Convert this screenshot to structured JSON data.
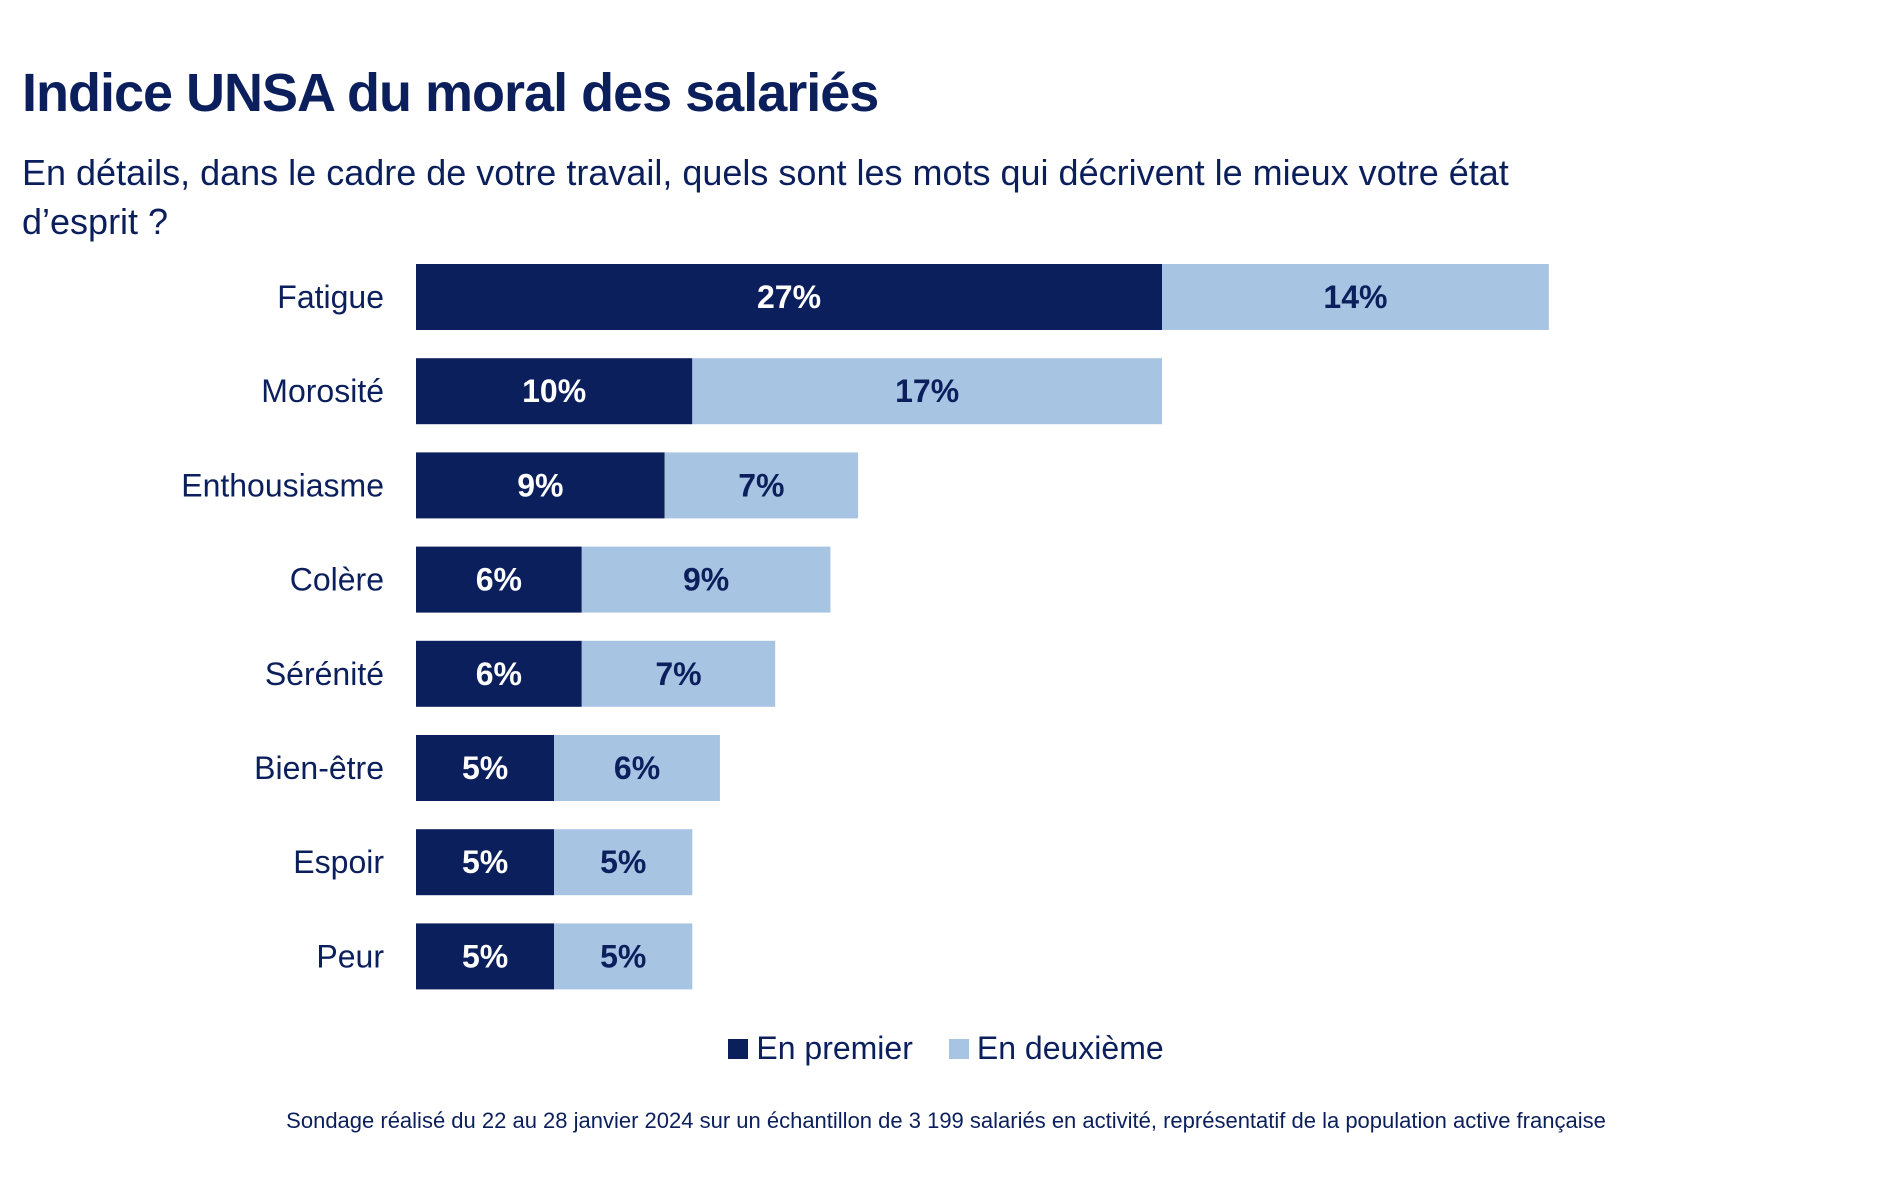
{
  "chart_data": {
    "type": "bar",
    "orientation": "horizontal",
    "stacked": true,
    "title": "Indice UNSA du moral des salariés",
    "subtitle": "En détails, dans le cadre de votre travail, quels sont les mots qui décrivent le mieux votre état d’esprit ?",
    "categories": [
      "Fatigue",
      "Morosité",
      "Enthousiasme",
      "Colère",
      "Sérénité",
      "Bien-être",
      "Espoir",
      "Peur"
    ],
    "series": [
      {
        "name": "En premier",
        "color": "#0b1f5c",
        "label_color": "#ffffff",
        "values": [
          27,
          10,
          9,
          6,
          6,
          5,
          5,
          5
        ],
        "labels": [
          "27%",
          "10%",
          "9%",
          "6%",
          "6%",
          "5%",
          "5%",
          "5%"
        ]
      },
      {
        "name": "En deuxième",
        "color": "#a8c4e3",
        "label_color": "#0b1f5c",
        "values": [
          14,
          17,
          7,
          9,
          7,
          6,
          5,
          5
        ],
        "labels": [
          "14%",
          "17%",
          "7%",
          "9%",
          "7%",
          "6%",
          "5%",
          "5%"
        ]
      }
    ],
    "xlim": [
      0,
      41
    ],
    "grid": false,
    "legend_position": "bottom"
  },
  "footnote": "Sondage réalisé du 22 au 28 janvier 2024 sur un échantillon de 3 199 salariés en activité, représentatif de la population active française"
}
